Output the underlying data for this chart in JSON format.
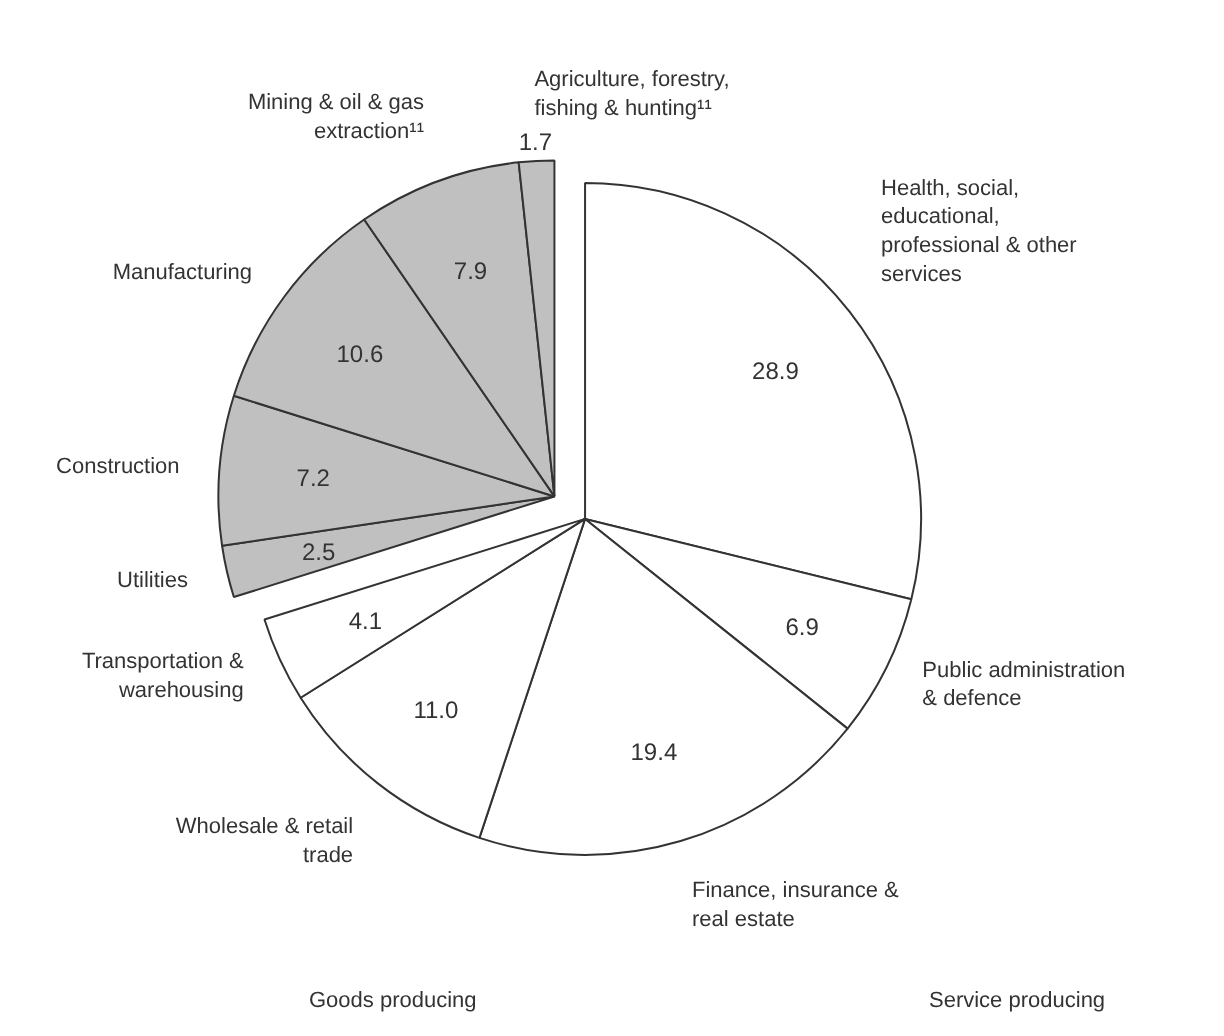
{
  "chart_data": {
    "type": "pie",
    "categories": [
      "Health, social, educational, professional & other services",
      "Public administration & defence",
      "Finance, insurance & real estate",
      "Wholesale & retail trade",
      "Transportation & warehousing",
      "Utilities",
      "Construction",
      "Manufacturing",
      "Mining & oil & gas extraction¹¹",
      "Agriculture, forestry, fishing & hunting¹¹"
    ],
    "values": [
      28.9,
      6.9,
      19.4,
      11.0,
      4.1,
      2.5,
      7.2,
      10.6,
      7.9,
      1.7
    ],
    "colors": [
      "#ffffff",
      "#ffffff",
      "#ffffff",
      "#ffffff",
      "#ffffff",
      "#c0c0c0",
      "#c0c0c0",
      "#c0c0c0",
      "#c0c0c0",
      "#c0c0c0"
    ],
    "annotations": [
      "Goods producing",
      "Service producing"
    ],
    "value_labels": [
      "28.9",
      "6.9",
      "19.4",
      "11.0",
      "4.1",
      "2.5",
      "7.2",
      "10.6",
      "7.9",
      "1.7"
    ]
  }
}
